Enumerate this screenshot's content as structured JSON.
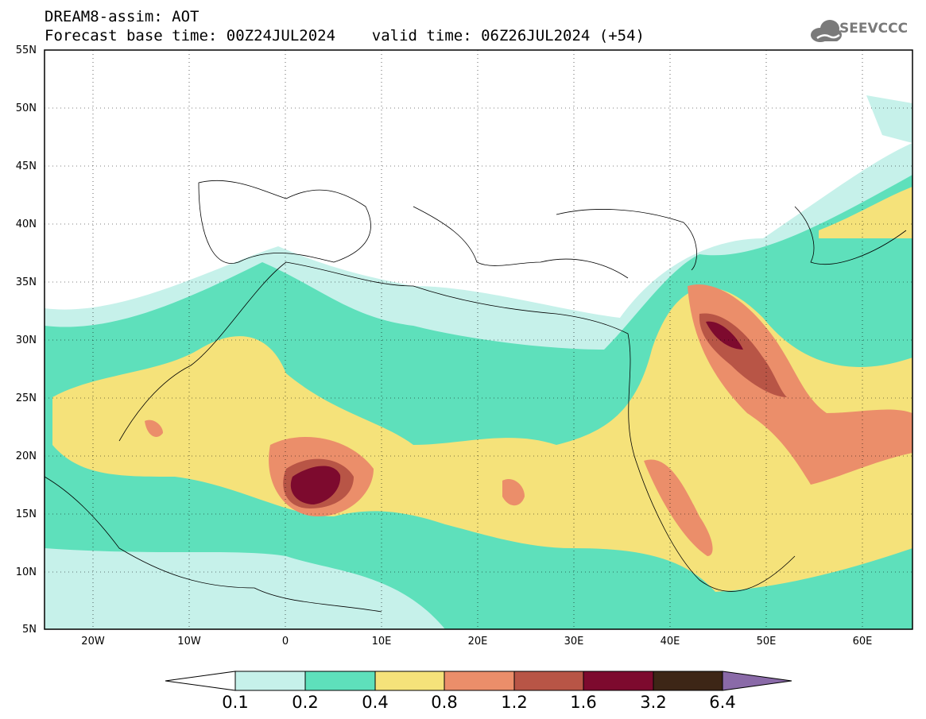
{
  "title": {
    "line1": "DREAM8-assim: AOT",
    "line2": "Forecast base time: 00Z24JUL2024    valid time: 06Z26JUL2024 (+54)"
  },
  "logo": {
    "text": "SEEVCCC",
    "icon": "cloud-icon",
    "color": "#7a7a7a"
  },
  "axes": {
    "lat_labels": [
      "55N",
      "50N",
      "45N",
      "40N",
      "35N",
      "30N",
      "25N",
      "20N",
      "15N",
      "10N",
      "5N"
    ],
    "lon_labels": [
      "20W",
      "10W",
      "0",
      "10E",
      "20E",
      "30E",
      "40E",
      "50E",
      "60E"
    ],
    "lon_range": [
      -25,
      65
    ],
    "lat_range": [
      5,
      55
    ]
  },
  "colorbar": {
    "levels": [
      "0.1",
      "0.2",
      "0.4",
      "0.8",
      "1.2",
      "1.6",
      "3.2",
      "6.4"
    ],
    "colors": [
      "#c6f1ea",
      "#5ee0bb",
      "#f5e27a",
      "#eb8e6a",
      "#b85546",
      "#7d0a2e",
      "#3d2616",
      "#8a6aa8"
    ]
  }
}
